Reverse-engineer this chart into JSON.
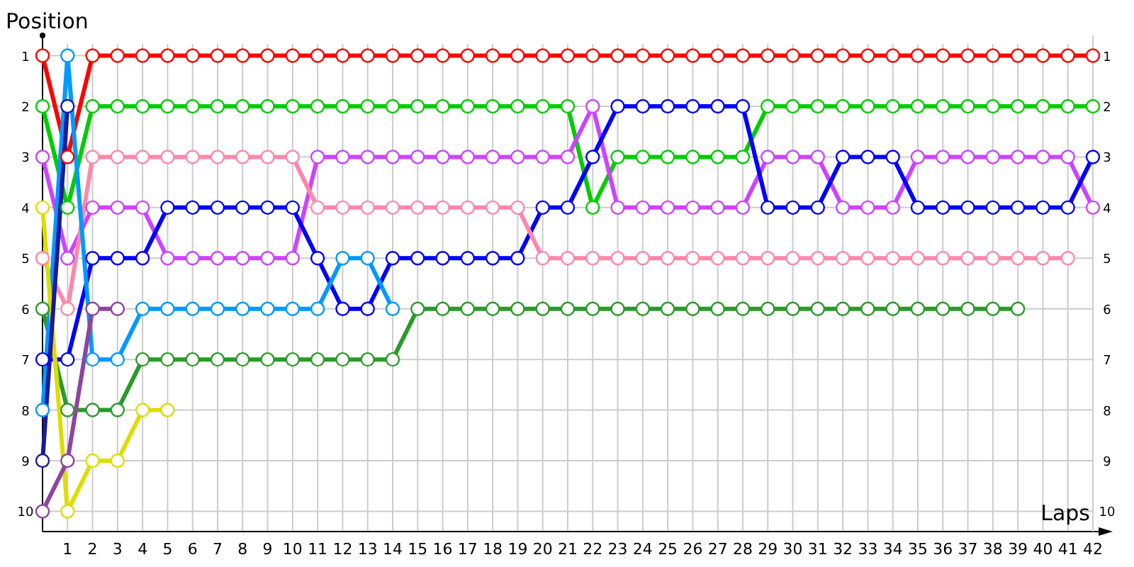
{
  "chart_data": {
    "type": "line",
    "xlabel": "Laps",
    "ylabel": "Position",
    "x": [
      0,
      1,
      2,
      3,
      4,
      5,
      6,
      7,
      8,
      9,
      10,
      11,
      12,
      13,
      14,
      15,
      16,
      17,
      18,
      19,
      20,
      21,
      22,
      23,
      24,
      25,
      26,
      27,
      28,
      29,
      30,
      31,
      32,
      33,
      34,
      35,
      36,
      37,
      38,
      39,
      40,
      41,
      42
    ],
    "series": [
      {
        "color": "#ff0000",
        "values": [
          1,
          3,
          1,
          1,
          1,
          1,
          1,
          1,
          1,
          1,
          1,
          1,
          1,
          1,
          1,
          1,
          1,
          1,
          1,
          1,
          1,
          1,
          1,
          1,
          1,
          1,
          1,
          1,
          1,
          1,
          1,
          1,
          1,
          1,
          1,
          1,
          1,
          1,
          1,
          1,
          1,
          1,
          1
        ]
      },
      {
        "color": "#00cc00",
        "values": [
          2,
          4,
          2,
          2,
          2,
          2,
          2,
          2,
          2,
          2,
          2,
          2,
          2,
          2,
          2,
          2,
          2,
          2,
          2,
          2,
          2,
          2,
          4,
          3,
          3,
          3,
          3,
          3,
          3,
          2,
          2,
          2,
          2,
          2,
          2,
          2,
          2,
          2,
          2,
          2,
          2,
          2,
          2
        ]
      },
      {
        "color": "#cc44ff",
        "values": [
          3,
          5,
          4,
          4,
          4,
          5,
          5,
          5,
          5,
          5,
          5,
          3,
          3,
          3,
          3,
          3,
          3,
          3,
          3,
          3,
          3,
          3,
          2,
          4,
          4,
          4,
          4,
          4,
          4,
          3,
          3,
          3,
          4,
          4,
          4,
          3,
          3,
          3,
          3,
          3,
          3,
          3,
          4
        ]
      },
      {
        "color": "#0000ff",
        "values": [
          7,
          7,
          5,
          5,
          5,
          4,
          4,
          4,
          4,
          4,
          4,
          5,
          6,
          6,
          5,
          5,
          5,
          5,
          5,
          5,
          4,
          4,
          3,
          2,
          2,
          2,
          2,
          2,
          2,
          4,
          4,
          4,
          3,
          3,
          3,
          4,
          4,
          4,
          4,
          4,
          4,
          4,
          3
        ]
      },
      {
        "color": "#ff88aa",
        "values": [
          5,
          6,
          3,
          3,
          3,
          3,
          3,
          3,
          3,
          3,
          3,
          4,
          4,
          4,
          4,
          4,
          4,
          4,
          4,
          4,
          5,
          5,
          5,
          5,
          5,
          5,
          5,
          5,
          5,
          5,
          5,
          5,
          5,
          5,
          5,
          5,
          5,
          5,
          5,
          5,
          5,
          5,
          null
        ]
      },
      {
        "color": "#2a9a2a",
        "values": [
          6,
          8,
          8,
          8,
          7,
          7,
          7,
          7,
          7,
          7,
          7,
          7,
          7,
          7,
          7,
          6,
          6,
          6,
          6,
          6,
          6,
          6,
          6,
          6,
          6,
          6,
          6,
          6,
          6,
          6,
          6,
          6,
          6,
          6,
          6,
          6,
          6,
          6,
          6,
          6,
          null,
          null,
          null
        ]
      },
      {
        "color": "#0099ff",
        "values": [
          8,
          1,
          7,
          7,
          6,
          6,
          6,
          6,
          6,
          6,
          6,
          6,
          5,
          5,
          6,
          null,
          null,
          null,
          null,
          null,
          null,
          null,
          null,
          null,
          null,
          null,
          null,
          null,
          null,
          null,
          null,
          null,
          null,
          null,
          null,
          null,
          null,
          null,
          null,
          null,
          null,
          null,
          null
        ]
      },
      {
        "color": "#dddd00",
        "values": [
          4,
          10,
          9,
          9,
          8,
          8,
          null,
          null,
          null,
          null,
          null,
          null,
          null,
          null,
          null,
          null,
          null,
          null,
          null,
          null,
          null,
          null,
          null,
          null,
          null,
          null,
          null,
          null,
          null,
          null,
          null,
          null,
          null,
          null,
          null,
          null,
          null,
          null,
          null,
          null,
          null,
          null,
          null
        ]
      },
      {
        "color": "#8e44a0",
        "values": [
          10,
          9,
          6,
          6,
          null,
          null,
          null,
          null,
          null,
          null,
          null,
          null,
          null,
          null,
          null,
          null,
          null,
          null,
          null,
          null,
          null,
          null,
          null,
          null,
          null,
          null,
          null,
          null,
          null,
          null,
          null,
          null,
          null,
          null,
          null,
          null,
          null,
          null,
          null,
          null,
          null,
          null,
          null
        ]
      },
      {
        "color": "#1a1a9a",
        "values": [
          9,
          2,
          null,
          null,
          null,
          null,
          null,
          null,
          null,
          null,
          null,
          null,
          null,
          null,
          null,
          null,
          null,
          null,
          null,
          null,
          null,
          null,
          null,
          null,
          null,
          null,
          null,
          null,
          null,
          null,
          null,
          null,
          null,
          null,
          null,
          null,
          null,
          null,
          null,
          null,
          null,
          null,
          null
        ]
      }
    ],
    "xlim": [
      0,
      42
    ],
    "xticks": [
      1,
      2,
      3,
      4,
      5,
      6,
      7,
      8,
      9,
      10,
      11,
      12,
      13,
      14,
      15,
      16,
      17,
      18,
      19,
      20,
      21,
      22,
      23,
      24,
      25,
      26,
      27,
      28,
      29,
      30,
      31,
      32,
      33,
      34,
      35,
      36,
      37,
      38,
      39,
      40,
      41,
      42
    ],
    "ylim": [
      10.4,
      0.6
    ],
    "yticks": [
      1,
      2,
      3,
      4,
      5,
      6,
      7,
      8,
      9,
      10
    ],
    "y2lim": [
      10.4,
      0.6
    ],
    "y2ticks": [
      1,
      2,
      3,
      4,
      5,
      6,
      7,
      8,
      9,
      10
    ],
    "grid": true,
    "marker": "circle",
    "line_style": "solid"
  }
}
